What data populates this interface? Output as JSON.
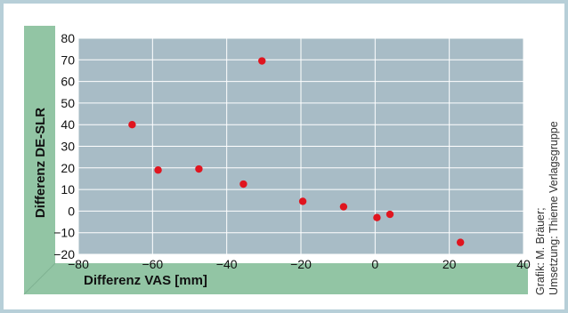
{
  "chart_data": {
    "type": "scatter",
    "xlabel": "Differenz VAS [mm]",
    "ylabel": "Differenz DE-SLR",
    "xlim": [
      -80,
      40
    ],
    "ylim": [
      -20,
      80
    ],
    "xticks": [
      -80,
      -60,
      -40,
      -20,
      0,
      20,
      40
    ],
    "yticks": [
      -20,
      -10,
      0,
      10,
      20,
      30,
      40,
      50,
      60,
      70,
      80
    ],
    "xtick_labels": [
      "−80",
      "−60",
      "−40",
      "−20",
      "0",
      "20",
      "40"
    ],
    "ytick_labels": [
      "−20",
      "−10",
      "0",
      "10",
      "20",
      "30",
      "40",
      "50",
      "60",
      "70",
      "80"
    ],
    "grid": true,
    "points": [
      {
        "x": -65.5,
        "y": 40
      },
      {
        "x": -58.5,
        "y": 19
      },
      {
        "x": -47.5,
        "y": 19.5
      },
      {
        "x": -35.5,
        "y": 12.5
      },
      {
        "x": -30.5,
        "y": 69.5
      },
      {
        "x": -19.5,
        "y": 4.5
      },
      {
        "x": -8.5,
        "y": 2
      },
      {
        "x": 0.5,
        "y": -3
      },
      {
        "x": 4,
        "y": -1.5
      },
      {
        "x": 23,
        "y": -14.5
      }
    ]
  },
  "credit": {
    "line1": "Grafik: M. Bräuer;",
    "line2": "Umsetzung: Thieme Verlagsgruppe"
  },
  "colors": {
    "plot_background": "#a8bcc6",
    "grid": "#ffffff",
    "point": "#e0151f",
    "axis_band": "#92c5a4",
    "axis_band_shade": "#7fb292",
    "frame": "#b7cfd8"
  }
}
